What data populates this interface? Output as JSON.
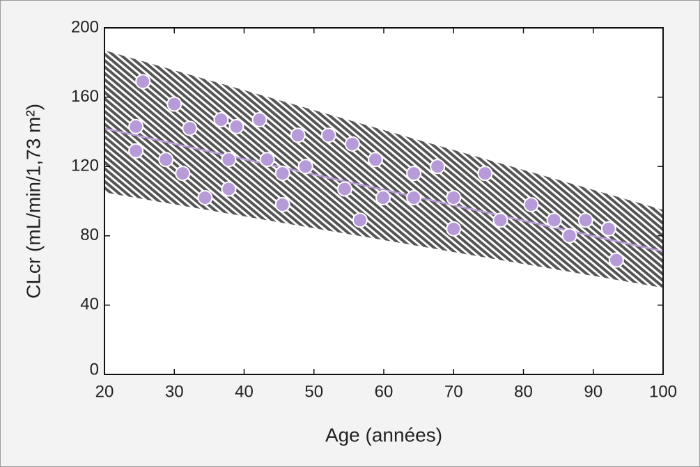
{
  "chart_data": {
    "type": "scatter",
    "xlabel": "Age (années)",
    "ylabel": "CLcr (mL/min/1,73 m²)",
    "xlim": [
      20,
      100
    ],
    "ylim": [
      0,
      200
    ],
    "xticks": [
      20,
      30,
      40,
      50,
      60,
      70,
      80,
      90,
      100
    ],
    "yticks": [
      0,
      40,
      80,
      120,
      160,
      200
    ],
    "color": "#b79bd9",
    "x": [
      25.5,
      24.5,
      24.5,
      30,
      28.8,
      31.2,
      32.2,
      34.4,
      36.7,
      37.8,
      37.8,
      38.9,
      42.2,
      43.3,
      45.5,
      45.5,
      47.7,
      48.8,
      52.1,
      54.4,
      55.5,
      56.6,
      58.8,
      59.9,
      64.3,
      64.3,
      67.7,
      70,
      70,
      74.5,
      76.7,
      81.1,
      84.4,
      86.6,
      88.9,
      92.2,
      93.3
    ],
    "values": [
      169,
      143,
      129,
      156,
      124,
      116,
      142,
      102,
      147,
      124,
      107,
      143,
      147,
      124,
      116,
      98,
      138,
      120,
      138,
      107,
      133,
      89,
      124,
      102,
      116,
      102,
      120,
      102,
      84,
      116,
      89,
      98,
      89,
      80,
      89,
      84,
      66
    ],
    "fit": {
      "x": [
        20,
        100
      ],
      "values": [
        142,
        71
      ],
      "color": "#b79bd9"
    },
    "band": {
      "x": [
        20,
        100
      ],
      "upper": [
        187,
        95
      ],
      "lower": [
        105,
        50
      ],
      "color": "#555555"
    }
  }
}
